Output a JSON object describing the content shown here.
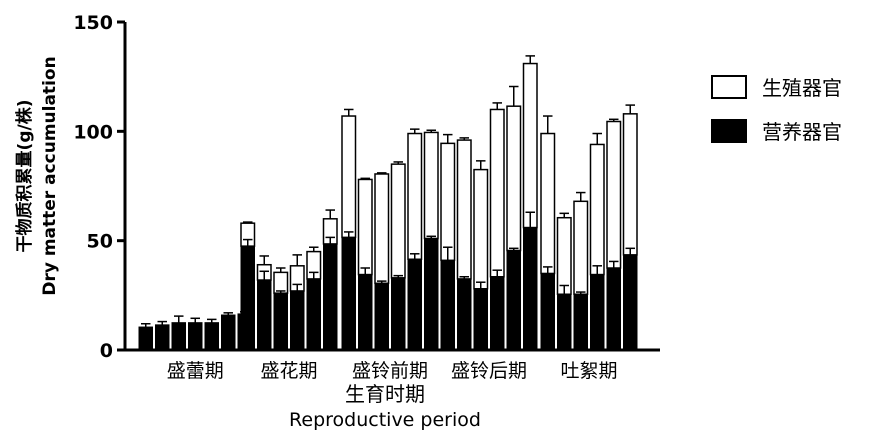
{
  "chart_data": {
    "type": "bar",
    "stacked": true,
    "error_bars": true,
    "ylabel_cn": "干物质积累量(g/株)",
    "ylabel_en": "Dry matter accumulation",
    "xlabel_cn": "生育时期",
    "xlabel_en": "Reproductive period",
    "ylim": [
      0,
      150
    ],
    "yticks": [
      "0",
      "50",
      "100",
      "150"
    ],
    "categories": [
      "盛蕾期",
      "盛花期",
      "盛铃前期",
      "盛铃后期",
      "吐絮期"
    ],
    "series": [
      {
        "name": "生殖器官",
        "color": "#ffffff"
      },
      {
        "name": "营养器官",
        "color": "#000000"
      }
    ],
    "groups": [
      {
        "category": "盛蕾期",
        "vegetative": [
          10.5,
          11.5,
          12.5,
          12.5,
          12.5,
          16,
          16.5
        ],
        "total": [
          10.5,
          11.5,
          12.5,
          12.5,
          12.5,
          16,
          16.5
        ],
        "err_veg": [
          1.5,
          1.5,
          3,
          2,
          1.5,
          1,
          1
        ],
        "err_total": [
          1.5,
          1.5,
          3,
          2,
          1.5,
          1,
          1
        ]
      },
      {
        "category": "盛花期",
        "vegetative": [
          47.5,
          32,
          26,
          27,
          32.5,
          48.5
        ],
        "total": [
          58,
          39,
          35.5,
          38.5,
          45,
          60
        ],
        "err_veg": [
          3,
          4,
          1,
          3,
          3,
          3
        ],
        "err_total": [
          0.5,
          4,
          2,
          5,
          2,
          4
        ]
      },
      {
        "category": "盛铃前期",
        "vegetative": [
          51.5,
          34.5,
          30.5,
          33,
          41.5,
          51
        ],
        "total": [
          107,
          78,
          80.5,
          85,
          99,
          99.5
        ],
        "err_veg": [
          2.5,
          3,
          1,
          1,
          2.5,
          1
        ],
        "err_total": [
          3,
          0.5,
          0.5,
          1,
          2,
          1
        ]
      },
      {
        "category": "盛铃后期",
        "vegetative": [
          41,
          32.5,
          28,
          33.5,
          45.5,
          56
        ],
        "total": [
          94.5,
          96,
          82.5,
          110,
          111.5,
          131
        ],
        "err_veg": [
          6,
          1,
          3,
          3,
          1,
          7
        ],
        "err_total": [
          4,
          1,
          4,
          3,
          9,
          3.5
        ]
      },
      {
        "category": "吐絮期",
        "vegetative": [
          35,
          25.5,
          25.5,
          34.5,
          37.5,
          43.5
        ],
        "total": [
          99,
          60.5,
          68,
          94,
          104.5,
          108
        ],
        "err_veg": [
          3,
          4,
          1,
          4,
          3,
          3
        ],
        "err_total": [
          8,
          2,
          4,
          5,
          1,
          4
        ]
      }
    ],
    "legend": {
      "position": "right"
    }
  }
}
